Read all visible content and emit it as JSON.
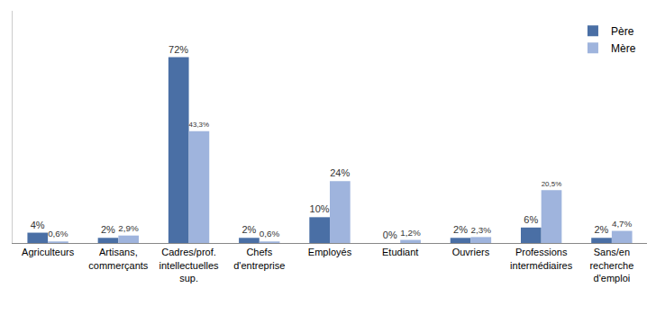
{
  "chart_data": {
    "type": "bar",
    "categories": [
      "Agriculteurs",
      "Artisans, commerçants",
      "Cadres/prof. intellectuelles sup.",
      "Chefs d'entreprise",
      "Employés",
      "Etudiant",
      "Ouvriers",
      "Professions intermédiaires",
      "Sans/en recherche d'emploi"
    ],
    "series": [
      {
        "name": "Père",
        "color": "#4a6fa5",
        "values": [
          4,
          2,
          72,
          2,
          10,
          0,
          2,
          6,
          2
        ],
        "value_labels": [
          "4%",
          "2%",
          "72%",
          "2%",
          "10%",
          "0%",
          "2%",
          "6%",
          "2%"
        ]
      },
      {
        "name": "Mère",
        "color": "#9fb4dd",
        "values": [
          0.6,
          2.9,
          43.3,
          0.6,
          24,
          1.2,
          2.3,
          20.5,
          4.7
        ],
        "value_labels": [
          "0,6%",
          "2,9%",
          "43,3%",
          "0,6%",
          "24%",
          "1,2%",
          "2,3%",
          "20,5%",
          "4,7%"
        ]
      }
    ],
    "ylim": [
      0,
      90
    ],
    "yticks": [],
    "grid": false,
    "legend": "top-right",
    "data_labels": true,
    "tick_labels": "x"
  }
}
